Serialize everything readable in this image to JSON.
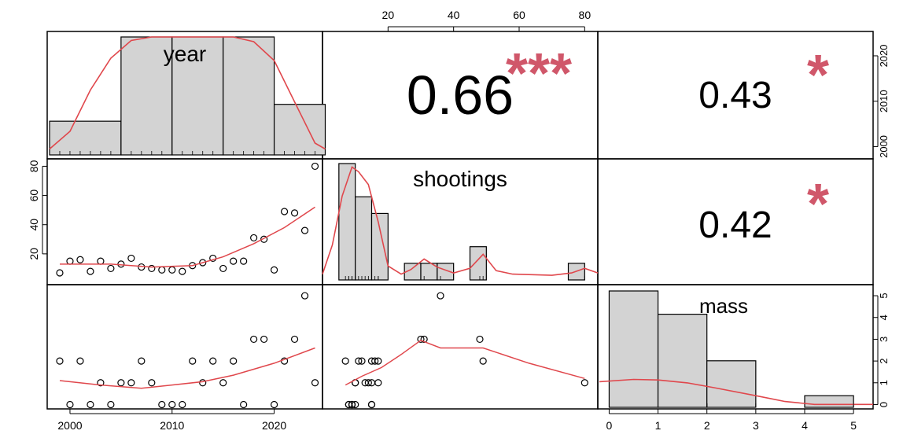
{
  "chart_data": {
    "type": "scatter-matrix",
    "variables": [
      "year",
      "shootings",
      "mass"
    ],
    "colors": {
      "smooth": "#E0474C",
      "stars": "#D0576A",
      "hist_fill": "#D3D3D3",
      "frame": "#000000"
    },
    "correlations": [
      {
        "pair": [
          "year",
          "shootings"
        ],
        "value": "0.66",
        "stars": "***"
      },
      {
        "pair": [
          "year",
          "mass"
        ],
        "value": "0.43",
        "stars": "*"
      },
      {
        "pair": [
          "shootings",
          "mass"
        ],
        "value": "0.42",
        "stars": "*"
      }
    ],
    "axes": {
      "year": {
        "range": [
          1998,
          2024.5
        ],
        "ticks": [
          "2000",
          "2010",
          "2020"
        ]
      },
      "shootings": {
        "range": [
          0,
          84
        ],
        "ticks": [
          "20",
          "40",
          "60",
          "80"
        ]
      },
      "mass": {
        "range": [
          -0.2,
          5.4
        ],
        "ticks_bottom": [
          "0",
          "1",
          "2",
          "3",
          "4",
          "5"
        ],
        "ticks_right": [
          "0",
          "1",
          "2",
          "3",
          "4",
          "5"
        ]
      }
    },
    "data": {
      "year": [
        1999,
        2000,
        2001,
        2002,
        2003,
        2004,
        2005,
        2006,
        2007,
        2008,
        2009,
        2010,
        2011,
        2012,
        2013,
        2014,
        2015,
        2016,
        2017,
        2018,
        2019,
        2020,
        2021,
        2022,
        2023,
        2024
      ],
      "shootings": [
        7,
        15,
        16,
        8,
        15,
        10,
        13,
        17,
        11,
        10,
        9,
        9,
        8,
        12,
        14,
        17,
        10,
        15,
        15,
        31,
        30,
        9,
        49,
        48,
        36,
        80
      ],
      "mass": [
        2,
        0,
        2,
        0,
        1,
        0,
        1,
        1,
        2,
        1,
        0,
        0,
        0,
        2,
        1,
        2,
        1,
        2,
        0,
        3,
        3,
        0,
        2,
        3,
        5,
        1
      ]
    },
    "histograms": {
      "year": {
        "breaks": [
          1998,
          2005,
          2010,
          2015,
          2020,
          2025
        ],
        "counts": [
          2,
          7,
          7,
          7,
          3
        ]
      },
      "shootings": {
        "breaks": [
          5,
          10,
          15,
          20,
          25,
          30,
          35,
          40,
          45,
          50,
          55,
          60,
          65,
          70,
          75,
          80
        ],
        "counts": [
          7,
          5,
          4,
          0,
          1,
          1,
          1,
          0,
          2,
          0,
          0,
          0,
          0,
          0,
          1
        ]
      },
      "mass": {
        "breaks": [
          0,
          1,
          2,
          3,
          4,
          5
        ],
        "counts": [
          10,
          8,
          4,
          0,
          1
        ]
      }
    },
    "smooth_curves": {
      "year_vs_shootings": [
        [
          1999,
          13
        ],
        [
          2004,
          13
        ],
        [
          2008,
          11
        ],
        [
          2012,
          12
        ],
        [
          2015,
          18
        ],
        [
          2018,
          27
        ],
        [
          2021,
          38
        ],
        [
          2024,
          52
        ]
      ],
      "year_vs_mass": [
        [
          1999,
          1.1
        ],
        [
          2003,
          0.9
        ],
        [
          2007,
          0.75
        ],
        [
          2010,
          0.9
        ],
        [
          2013,
          1.05
        ],
        [
          2016,
          1.35
        ],
        [
          2020,
          1.9
        ],
        [
          2024,
          2.6
        ]
      ],
      "shootings_vs_mass": [
        [
          7,
          0.9
        ],
        [
          12,
          1.3
        ],
        [
          18,
          1.7
        ],
        [
          24,
          2.3
        ],
        [
          30,
          2.95
        ],
        [
          36,
          2.6
        ],
        [
          49,
          2.6
        ],
        [
          63,
          1.9
        ],
        [
          80,
          1.2
        ]
      ],
      "year_density": [
        [
          1998,
          0.05
        ],
        [
          2000,
          0.2
        ],
        [
          2002,
          0.55
        ],
        [
          2004,
          0.82
        ],
        [
          2006,
          0.97
        ],
        [
          2008,
          1.0
        ],
        [
          2012,
          1.0
        ],
        [
          2016,
          1.0
        ],
        [
          2018,
          0.96
        ],
        [
          2020,
          0.8
        ],
        [
          2022,
          0.45
        ],
        [
          2024,
          0.1
        ],
        [
          2025,
          0.05
        ]
      ],
      "shootings_density": [
        [
          0,
          0.05
        ],
        [
          3,
          0.3
        ],
        [
          6,
          0.72
        ],
        [
          9,
          0.97
        ],
        [
          11,
          0.93
        ],
        [
          14,
          0.82
        ],
        [
          17,
          0.5
        ],
        [
          20,
          0.12
        ],
        [
          24,
          0.05
        ],
        [
          27,
          0.09
        ],
        [
          31,
          0.18
        ],
        [
          35,
          0.11
        ],
        [
          40,
          0.06
        ],
        [
          45,
          0.1
        ],
        [
          49,
          0.22
        ],
        [
          53,
          0.08
        ],
        [
          58,
          0.05
        ],
        [
          70,
          0.04
        ],
        [
          76,
          0.06
        ],
        [
          80,
          0.1
        ],
        [
          84,
          0.06
        ]
      ],
      "mass_density": [
        [
          -0.2,
          0.44
        ],
        [
          0.5,
          0.48
        ],
        [
          1.0,
          0.47
        ],
        [
          1.6,
          0.42
        ],
        [
          2.2,
          0.33
        ],
        [
          3.0,
          0.2
        ],
        [
          3.6,
          0.1
        ],
        [
          4.2,
          0.05
        ],
        [
          4.8,
          0.05
        ],
        [
          5.4,
          0.05
        ]
      ]
    }
  }
}
